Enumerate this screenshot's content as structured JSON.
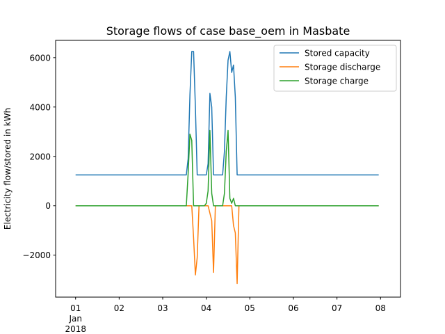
{
  "chart_data": {
    "type": "line",
    "title": "Storage flows of case base_oem in Masbate",
    "xlabel": "",
    "ylabel": "Electricity flow/stored in kWh",
    "x_unit": "hour",
    "x_start": "2018-01-01T00:00",
    "x_step_hours": 1,
    "xlim": [
      "2017-12-31T13:00",
      "2018-01-08T11:00"
    ],
    "ylim": [
      -3700,
      6700
    ],
    "y_ticks": [
      -2000,
      0,
      2000,
      4000,
      6000
    ],
    "y_tick_labels": [
      "−2000",
      "0",
      "2000",
      "4000",
      "6000"
    ],
    "x_ticks": [
      {
        "x": "2018-01-01T00:00",
        "lines": [
          "01",
          "Jan",
          "2018"
        ]
      },
      {
        "x": "2018-01-02T00:00",
        "lines": [
          "02"
        ]
      },
      {
        "x": "2018-01-03T00:00",
        "lines": [
          "03"
        ]
      },
      {
        "x": "2018-01-04T00:00",
        "lines": [
          "04"
        ]
      },
      {
        "x": "2018-01-05T00:00",
        "lines": [
          "05"
        ]
      },
      {
        "x": "2018-01-06T00:00",
        "lines": [
          "06"
        ]
      },
      {
        "x": "2018-01-07T00:00",
        "lines": [
          "07"
        ]
      },
      {
        "x": "2018-01-08T00:00",
        "lines": [
          "08"
        ]
      }
    ],
    "grid": false,
    "legend_position": "top-right",
    "series": [
      {
        "name": "Stored capacity",
        "color": "#1f77b4",
        "default": 1250,
        "points": [
          [
            0,
            1250
          ],
          [
            61,
            1250
          ],
          [
            62,
            1900
          ],
          [
            63,
            4500
          ],
          [
            64,
            6250
          ],
          [
            65,
            6250
          ],
          [
            66,
            4000
          ],
          [
            67,
            1250
          ],
          [
            72,
            1250
          ],
          [
            73,
            1700
          ],
          [
            74,
            4550
          ],
          [
            75,
            4000
          ],
          [
            76,
            1250
          ],
          [
            81,
            1250
          ],
          [
            82,
            2200
          ],
          [
            83,
            4400
          ],
          [
            84,
            5900
          ],
          [
            85,
            6250
          ],
          [
            86,
            5400
          ],
          [
            87,
            5700
          ],
          [
            88,
            4400
          ],
          [
            89,
            1250
          ],
          [
            167,
            1250
          ]
        ]
      },
      {
        "name": "Storage discharge",
        "color": "#ff7f0e",
        "default": 0,
        "points": [
          [
            0,
            0
          ],
          [
            64,
            0
          ],
          [
            65,
            -1300
          ],
          [
            66,
            -2800
          ],
          [
            67,
            -2100
          ],
          [
            68,
            0
          ],
          [
            73,
            0
          ],
          [
            74,
            -300
          ],
          [
            75,
            -600
          ],
          [
            76,
            -2700
          ],
          [
            77,
            0
          ],
          [
            86,
            0
          ],
          [
            87,
            -800
          ],
          [
            88,
            -1100
          ],
          [
            89,
            -3150
          ],
          [
            90,
            0
          ],
          [
            167,
            0
          ]
        ]
      },
      {
        "name": "Storage charge",
        "color": "#2ca02c",
        "default": 0,
        "points": [
          [
            0,
            0
          ],
          [
            61,
            0
          ],
          [
            62,
            1300
          ],
          [
            63,
            2900
          ],
          [
            64,
            2650
          ],
          [
            65,
            0
          ],
          [
            71,
            0
          ],
          [
            72,
            100
          ],
          [
            73,
            600
          ],
          [
            74,
            3050
          ],
          [
            75,
            500
          ],
          [
            76,
            0
          ],
          [
            81,
            0
          ],
          [
            82,
            500
          ],
          [
            83,
            2200
          ],
          [
            84,
            3050
          ],
          [
            85,
            300
          ],
          [
            86,
            100
          ],
          [
            87,
            300
          ],
          [
            88,
            0
          ],
          [
            167,
            0
          ]
        ]
      }
    ]
  }
}
